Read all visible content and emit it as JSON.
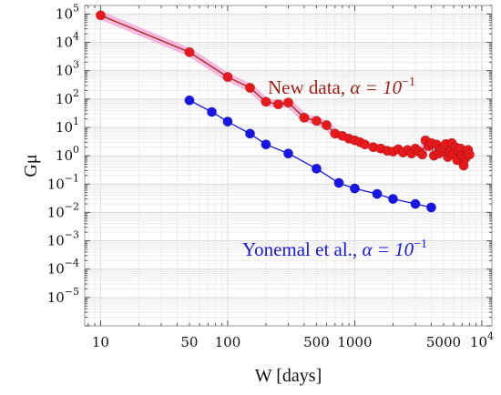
{
  "chart_data": {
    "type": "scatter",
    "xlabel": "W [days]",
    "ylabel": "Gμ",
    "xscale": "log",
    "yscale": "log",
    "xlim": [
      7.5,
      12000
    ],
    "ylim": [
      1e-06,
      200000
    ],
    "grid": true,
    "x_ticks": [
      {
        "value": 10,
        "label": "10"
      },
      {
        "value": 50,
        "label": "50"
      },
      {
        "value": 100,
        "label": "100"
      },
      {
        "value": 500,
        "label": "500"
      },
      {
        "value": 1000,
        "label": "1000"
      },
      {
        "value": 5000,
        "label": "5000"
      },
      {
        "value": 10000,
        "label": "10",
        "exp": "4"
      }
    ],
    "y_ticks": [
      {
        "value": 100000,
        "base": "10",
        "exp": "5"
      },
      {
        "value": 10000,
        "base": "10",
        "exp": "4"
      },
      {
        "value": 1000,
        "base": "10",
        "exp": "3"
      },
      {
        "value": 100,
        "base": "10",
        "exp": "2"
      },
      {
        "value": 10,
        "base": "10",
        "exp": "1"
      },
      {
        "value": 1,
        "base": "10",
        "exp": "0"
      },
      {
        "value": 0.1,
        "base": "10",
        "exp": "−1"
      },
      {
        "value": 0.01,
        "base": "10",
        "exp": "−2"
      },
      {
        "value": 0.001,
        "base": "10",
        "exp": "−3"
      },
      {
        "value": 0.0001,
        "base": "10",
        "exp": "−4"
      },
      {
        "value": 1e-05,
        "base": "10",
        "exp": "−5"
      }
    ],
    "series": [
      {
        "label_text": "New data, ",
        "label_math": "α = 10",
        "label_exp": "−1",
        "color": "#e8191b",
        "line_color": "#a31e14",
        "halo_color": "#f6a8d6",
        "x": [
          10,
          50,
          100,
          150,
          200,
          250,
          300,
          400,
          500,
          600,
          700,
          800,
          900,
          1000,
          1100,
          1200,
          1400,
          1600,
          1800,
          2000,
          2200,
          2400,
          2600,
          2800,
          3000,
          3200,
          3400,
          3600,
          3800,
          4000,
          4200,
          4400,
          4600,
          4800,
          5000,
          5200,
          5400,
          5600,
          5800,
          6000,
          6200,
          6400,
          6600,
          6800,
          7000,
          7200,
          7400,
          7600,
          7800,
          8000
        ],
        "y": [
          90000,
          4500,
          600,
          250,
          80,
          65,
          75,
          22,
          17,
          12,
          6,
          5,
          4,
          3.5,
          3,
          2.5,
          2,
          1.8,
          1.5,
          1.4,
          1.7,
          1.3,
          1.6,
          1.2,
          1.8,
          1.4,
          1.1,
          3.5,
          2.2,
          2.8,
          1.0,
          2.5,
          1.2,
          1.6,
          1.9,
          2.6,
          0.9,
          1.3,
          2.8,
          1.1,
          2.0,
          0.7,
          1.5,
          1.8,
          1.0,
          0.45,
          0.8,
          1.2,
          1.6,
          1.1
        ]
      },
      {
        "label_text": "Yonemal et al., ",
        "label_math": "α = 10",
        "label_exp": "−1",
        "color": "#1616e6",
        "line_color": "#1616e6",
        "x": [
          50,
          75,
          100,
          150,
          200,
          300,
          500,
          750,
          1000,
          1500,
          2000,
          3000,
          4000
        ],
        "y": [
          90,
          35,
          16,
          6,
          2.5,
          1.2,
          0.35,
          0.11,
          0.07,
          0.045,
          0.03,
          0.02,
          0.015
        ]
      }
    ]
  }
}
